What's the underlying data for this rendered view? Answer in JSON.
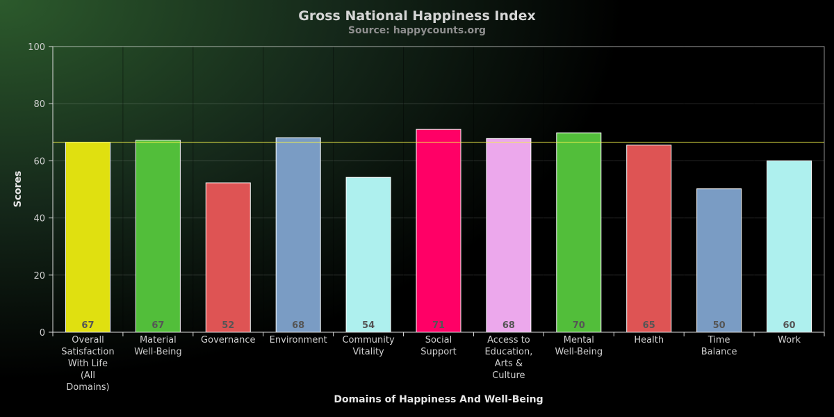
{
  "chart_data": {
    "type": "bar",
    "title": "Gross National Happiness Index",
    "subtitle": "Source: happycounts.org",
    "xlabel": "Domains of Happiness And Well-Being",
    "ylabel": "Scores",
    "ylim": [
      0,
      100
    ],
    "yticks": [
      0,
      20,
      40,
      60,
      80,
      100
    ],
    "grid": true,
    "legend": "none",
    "reference_line": {
      "value": 66.5,
      "color": "#f2f24a"
    },
    "categories": [
      "Overall Satisfaction With Life (All Domains)",
      "Material Well-Being",
      "Governance",
      "Environment",
      "Community Vitality",
      "Social Support",
      "Access to Education, Arts & Culture",
      "Mental Well-Being",
      "Health",
      "Time Balance",
      "Work"
    ],
    "category_lines": [
      [
        "Overall",
        "Satisfaction",
        "With Life",
        "(All",
        "Domains)"
      ],
      [
        "Material",
        "Well-Being"
      ],
      [
        "Governance"
      ],
      [
        "Environment"
      ],
      [
        "Community",
        "Vitality"
      ],
      [
        "Social",
        "Support"
      ],
      [
        "Access to",
        "Education,",
        "Arts &",
        "Culture"
      ],
      [
        "Mental",
        "Well-Being"
      ],
      [
        "Health"
      ],
      [
        "Time",
        "Balance"
      ],
      [
        "Work"
      ]
    ],
    "values": [
      66.5,
      67.2,
      52.3,
      68.1,
      54.2,
      71.0,
      67.8,
      69.8,
      65.5,
      50.2,
      60.0
    ],
    "data_labels": [
      "67",
      "67",
      "52",
      "68",
      "54",
      "71",
      "68",
      "70",
      "65",
      "50",
      "60"
    ],
    "colors": [
      "#e0e010",
      "#52be3a",
      "#de5454",
      "#7a9cc4",
      "#aef0ee",
      "#ff0066",
      "#eca8ec",
      "#52be3a",
      "#de5454",
      "#7a9cc4",
      "#aef0ee"
    ]
  }
}
